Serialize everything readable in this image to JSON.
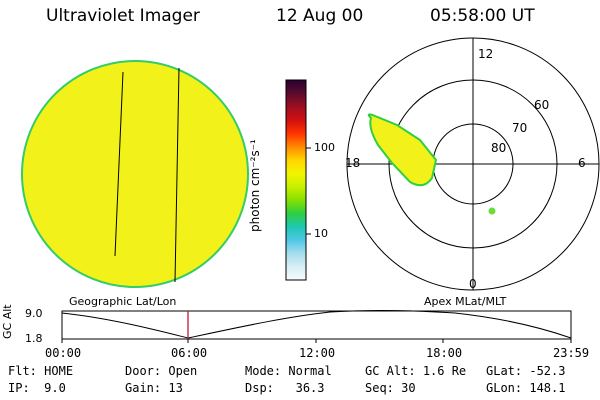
{
  "header": {
    "instrument": "Ultraviolet Imager",
    "date": "12 Aug 00",
    "time": "05:58:00 UT"
  },
  "globe_panel": {
    "label": "Geographic Lat/Lon",
    "fill_color": "#f2f21a",
    "rim_color": "#33cc66"
  },
  "colorbar": {
    "unit_label": "photon cm⁻²s⁻¹",
    "tick_labels": [
      "100",
      "10"
    ],
    "stops": [
      "#2a0033",
      "#5a0b2e",
      "#9c1020",
      "#d01010",
      "#ff3300",
      "#ff8800",
      "#ffd400",
      "#f5f500",
      "#c8f000",
      "#86e000",
      "#2fcf40",
      "#1fc8b0",
      "#4ec7e6",
      "#a6dcef",
      "#d8eef5",
      "#f4fbfd"
    ]
  },
  "polar_panel": {
    "label": "Apex MLat/MLT",
    "mlt_labels": [
      "12",
      "18",
      "6",
      "0"
    ],
    "mlat_labels": [
      "60",
      "70",
      "80"
    ]
  },
  "timeline": {
    "axis_label": "GC Alt",
    "y_ticks": [
      "9.0",
      "1.8"
    ],
    "x_ticks": [
      "00:00",
      "06:00",
      "12:00",
      "18:00",
      "23:59"
    ],
    "current_time_color": "#c21a3a"
  },
  "status": {
    "row1": [
      {
        "label": "Flt:",
        "value": "HOME"
      },
      {
        "label": "Door:",
        "value": "Open"
      },
      {
        "label": "Mode:",
        "value": "Normal"
      },
      {
        "label": "GC Alt:",
        "value": "1.6 Re"
      },
      {
        "label": "GLat:",
        "value": "-52.3"
      }
    ],
    "row2": [
      {
        "label": "IP:",
        "value": "9.0"
      },
      {
        "label": "Gain:",
        "value": "13"
      },
      {
        "label": "Dsp:",
        "value": "36.3"
      },
      {
        "label": "Seq:",
        "value": "30"
      },
      {
        "label": "GLon:",
        "value": "148.1"
      }
    ]
  }
}
